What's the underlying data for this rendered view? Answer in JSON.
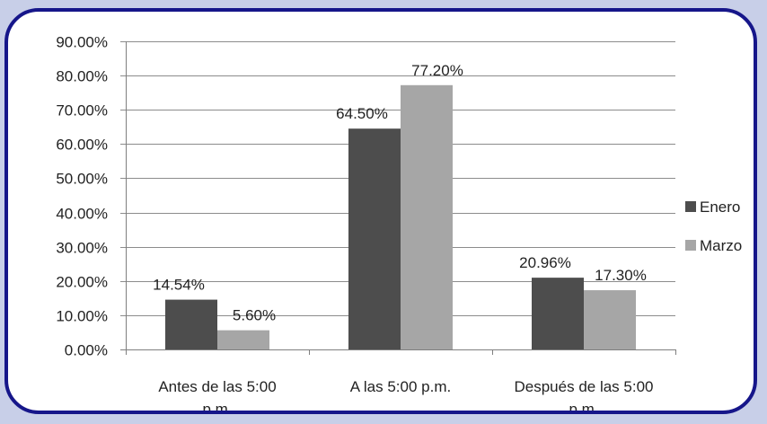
{
  "chart_data": {
    "type": "bar",
    "title": "",
    "xlabel": "",
    "ylabel": "",
    "categories": [
      [
        "Antes de las 5:00",
        "p.m."
      ],
      [
        "A las 5:00 p.m."
      ],
      [
        "Después de las 5:00",
        "p.m."
      ]
    ],
    "series": [
      {
        "name": "Enero",
        "color": "#4d4d4d",
        "values": [
          14.54,
          64.5,
          20.96
        ],
        "labels": [
          "14.54%",
          "64.50%",
          "20.96%"
        ]
      },
      {
        "name": "Marzo",
        "color": "#a6a6a6",
        "values": [
          5.6,
          77.2,
          17.3
        ],
        "labels": [
          "5.60%",
          "77.20%",
          "17.30%"
        ]
      }
    ],
    "ylim": [
      0,
      90
    ],
    "yticks": [
      0,
      10,
      20,
      30,
      40,
      50,
      60,
      70,
      80,
      90
    ],
    "ytick_labels": [
      "0.00%",
      "10.00%",
      "20.00%",
      "30.00%",
      "40.00%",
      "50.00%",
      "60.00%",
      "70.00%",
      "80.00%",
      "90.00%"
    ],
    "grid": true,
    "legend_position": "right"
  }
}
